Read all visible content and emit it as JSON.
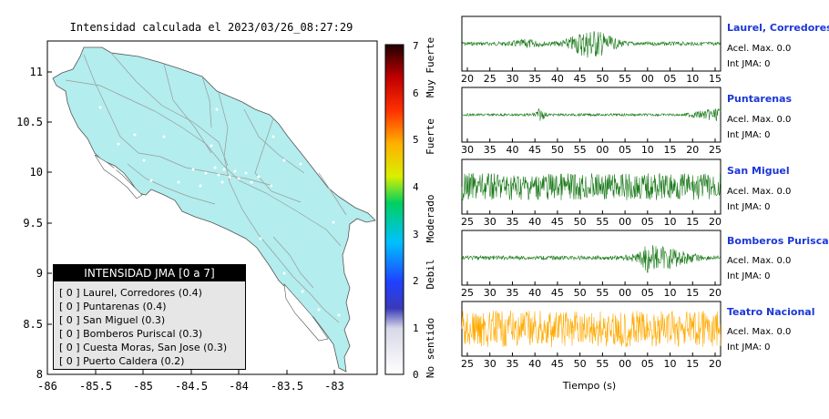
{
  "map": {
    "title": "Intensidad calculada el 2023/03/26_08:27:29",
    "x_ticks": [
      "-86",
      "-85.5",
      "-85",
      "-84.5",
      "-84",
      "-83.5",
      "-83"
    ],
    "y_ticks": [
      "11",
      "10.5",
      "10",
      "9.5",
      "9",
      "8.5",
      "8"
    ],
    "land_color": "#b3eded"
  },
  "colorbar": {
    "ticks": [
      "0",
      "1",
      "2",
      "3",
      "4",
      "5",
      "6",
      "7"
    ],
    "labels": [
      "No sentido",
      "Debil",
      "Moderado",
      "Fuerte",
      "Muy Fuerte"
    ]
  },
  "legend": {
    "title": "INTENSIDAD JMA [0 a 7]",
    "items": [
      "[ 0 ]  Laurel, Corredores (0.4)",
      "[ 0 ]  Puntarenas (0.4)",
      "[ 0 ]  San Miguel (0.3)",
      "[ 0 ]  Bomberos Puriscal (0.3)",
      "[ 0 ]  Cuesta Moras, San Jose (0.3)",
      "[ 0 ]  Puerto Caldera (0.2)"
    ]
  },
  "traces": [
    {
      "name": "Laurel, Corredores",
      "acel": "Acel. Max. 0.0",
      "jma": "Int JMA: 0",
      "ticks": [
        "20",
        "25",
        "30",
        "35",
        "40",
        "45",
        "50",
        "55",
        "00",
        "05",
        "10",
        "15"
      ],
      "color": "#1a7a1a",
      "amp": 0.25
    },
    {
      "name": "Puntarenas",
      "acel": "Acel. Max. 0.0",
      "jma": "Int JMA: 0",
      "ticks": [
        "30",
        "35",
        "40",
        "45",
        "50",
        "55",
        "00",
        "05",
        "10",
        "15",
        "20",
        "25"
      ],
      "color": "#1a7a1a",
      "amp": 0.12
    },
    {
      "name": "San Miguel",
      "acel": "Acel. Max. 0.0",
      "jma": "Int JMA: 0",
      "ticks": [
        "25",
        "30",
        "35",
        "40",
        "45",
        "50",
        "55",
        "00",
        "05",
        "10",
        "15",
        "20"
      ],
      "color": "#1a7a1a",
      "amp": 0.55
    },
    {
      "name": "Bomberos Puriscal",
      "acel": "Acel. Max. 0.0",
      "jma": "Int JMA: 0",
      "ticks": [
        "25",
        "30",
        "35",
        "40",
        "45",
        "50",
        "55",
        "00",
        "05",
        "10",
        "15",
        "20"
      ],
      "color": "#1a7a1a",
      "amp": 0.3
    },
    {
      "name": "Teatro Nacional",
      "acel": "Acel. Max. 0.0",
      "jma": "Int JMA: 0",
      "ticks": [
        "25",
        "30",
        "35",
        "40",
        "45",
        "50",
        "55",
        "00",
        "05",
        "10",
        "15",
        "20"
      ],
      "color": "#ffaa00",
      "amp": 0.75
    }
  ],
  "xlabel": "Tiempo (s)"
}
